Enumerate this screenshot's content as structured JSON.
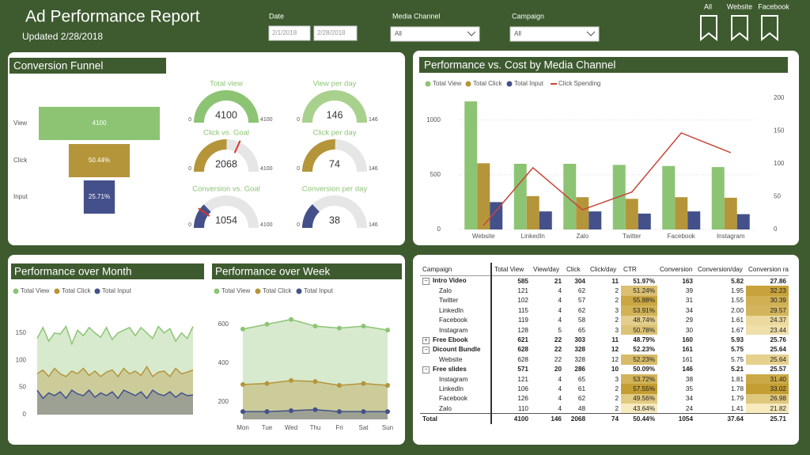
{
  "header": {
    "title": "Ad Performance Report",
    "updated": "Updated 2/28/2018",
    "filters": [
      {
        "label": "Date",
        "values": [
          "2/1/2018",
          "2/28/2018"
        ]
      },
      {
        "label": "Media Channel",
        "values": [
          "All"
        ]
      },
      {
        "label": "Campaign",
        "values": [
          "All"
        ]
      }
    ],
    "bookmarks": [
      "All",
      "Website",
      "Facebook"
    ]
  },
  "chart_data": [
    {
      "type": "funnel",
      "title": "Conversion Funnel",
      "categories": [
        "View",
        "Click",
        "Input"
      ],
      "values": [
        4100,
        2068,
        1054
      ],
      "bar_labels": [
        "4100",
        "50.44%",
        "25.71%"
      ],
      "colors": [
        "#8cc474",
        "#b5953a",
        "#44508a"
      ]
    },
    {
      "type": "gauge",
      "title": "Total view",
      "value": 4100,
      "ylim": [
        0,
        4100
      ],
      "color": "#8cc474"
    },
    {
      "type": "gauge",
      "title": "View per day",
      "value": 146,
      "ylim": [
        0,
        146
      ],
      "color": "#a9d18e"
    },
    {
      "type": "gauge",
      "title": "Click vs. Goal",
      "value": 2068,
      "goal": 2600,
      "ylim": [
        0,
        4100
      ],
      "color": "#b5953a"
    },
    {
      "type": "gauge",
      "title": "Click per day",
      "value": 74,
      "ylim": [
        0,
        146
      ],
      "color": "#b5953a"
    },
    {
      "type": "gauge",
      "title": "Conversion vs. Goal",
      "value": 1054,
      "goal": 800,
      "ylim": [
        0,
        4100
      ],
      "color": "#44508a"
    },
    {
      "type": "gauge",
      "title": "Conversion per day",
      "value": 38,
      "ylim": [
        0,
        146
      ],
      "color": "#44508a"
    },
    {
      "type": "bar_line",
      "title": "Performance vs. Cost by Media Channel",
      "categories": [
        "Website",
        "LinkedIn",
        "Zalo",
        "Twitter",
        "Facebook",
        "Instagram"
      ],
      "series": [
        {
          "name": "Total View",
          "color": "#8cc474",
          "values": [
            1170,
            600,
            600,
            590,
            580,
            570
          ]
        },
        {
          "name": "Total Click",
          "color": "#b5953a",
          "values": [
            605,
            305,
            295,
            280,
            295,
            290
          ]
        },
        {
          "name": "Total Input",
          "color": "#44508a",
          "values": [
            250,
            165,
            165,
            145,
            165,
            140
          ]
        },
        {
          "name": "Click Spending",
          "type": "line",
          "axis": "y2",
          "color": "#c8463a",
          "values": [
            6,
            94,
            30,
            57,
            147,
            117
          ]
        }
      ],
      "ylim": [
        0,
        1200
      ],
      "yticks": [
        0,
        500,
        1000
      ],
      "y2lim": [
        0,
        200
      ],
      "y2ticks": [
        0,
        50,
        100,
        150,
        200
      ],
      "grid": true
    },
    {
      "type": "area",
      "title": "Performance over Month",
      "categories": [
        null,
        null,
        null,
        null,
        null,
        null,
        null,
        null,
        null,
        null,
        null,
        null,
        null,
        null,
        null,
        null,
        null,
        null,
        null,
        null,
        null,
        null,
        null,
        null,
        null,
        null,
        null,
        null
      ],
      "series": [
        {
          "name": "Total View",
          "color": "#8cc474",
          "values": [
            140,
            160,
            135,
            150,
            148,
            162,
            130,
            155,
            145,
            160,
            150,
            142,
            160,
            138,
            150,
            155,
            160,
            145,
            160,
            150,
            140,
            162,
            150,
            158,
            135,
            150,
            140,
            162
          ]
        },
        {
          "name": "Total Click",
          "color": "#b5953a",
          "values": [
            75,
            82,
            70,
            85,
            75,
            70,
            80,
            75,
            85,
            72,
            80,
            70,
            78,
            82,
            70,
            85,
            75,
            80,
            72,
            88,
            70,
            78,
            80,
            70,
            85,
            75,
            78,
            82
          ]
        },
        {
          "name": "Total Input",
          "color": "#44508a",
          "values": [
            45,
            30,
            40,
            35,
            42,
            30,
            45,
            38,
            35,
            45,
            32,
            40,
            35,
            42,
            30,
            45,
            40,
            35,
            42,
            30,
            45,
            38,
            35,
            42,
            32,
            40,
            35,
            36
          ]
        }
      ],
      "ylim": [
        0,
        170
      ],
      "yticks": [
        0,
        50,
        100,
        150
      ]
    },
    {
      "type": "area",
      "title": "Performance over Week",
      "markers": true,
      "categories": [
        "Mon",
        "Tue",
        "Wed",
        "Thu",
        "Fri",
        "Sat",
        "Sun"
      ],
      "series": [
        {
          "name": "Total View",
          "color": "#8cc474",
          "values": [
            575,
            600,
            625,
            590,
            580,
            590,
            570
          ]
        },
        {
          "name": "Total Click",
          "color": "#b5953a",
          "values": [
            290,
            295,
            310,
            305,
            285,
            295,
            285
          ]
        },
        {
          "name": "Total Input",
          "color": "#44508a",
          "values": [
            150,
            150,
            155,
            160,
            150,
            150,
            150
          ]
        }
      ],
      "ylim": [
        110,
        660
      ],
      "yticks": [
        200,
        400,
        600
      ]
    }
  ],
  "table": {
    "columns": [
      "Campaign",
      "Total View",
      "View/day",
      "Click",
      "Click/day",
      "CTR",
      "Conversion",
      "Conversion/day",
      "Conversion ra"
    ],
    "rows": [
      {
        "toggle": "−",
        "cells": [
          "Intro Video",
          "585",
          "21",
          "304",
          "11",
          "51.97%",
          "163",
          "5.82",
          "27.86"
        ]
      },
      {
        "cells": [
          "Zalo",
          "121",
          "4",
          "62",
          "2",
          "51.24%",
          "39",
          "1.95",
          "32.23"
        ]
      },
      {
        "cells": [
          "Twitter",
          "102",
          "4",
          "57",
          "2",
          "55.88%",
          "31",
          "1.55",
          "30.39"
        ]
      },
      {
        "cells": [
          "LinkedIn",
          "115",
          "4",
          "62",
          "3",
          "53.91%",
          "34",
          "2.00",
          "29.57"
        ]
      },
      {
        "cells": [
          "Facebook",
          "119",
          "4",
          "58",
          "2",
          "48.74%",
          "29",
          "1.61",
          "24.37"
        ]
      },
      {
        "cells": [
          "Instagram",
          "128",
          "5",
          "65",
          "3",
          "50.78%",
          "30",
          "1.67",
          "23.44"
        ]
      },
      {
        "toggle": "+",
        "cells": [
          "Free Ebook",
          "621",
          "22",
          "303",
          "11",
          "48.79%",
          "160",
          "5.93",
          "25.76"
        ]
      },
      {
        "toggle": "−",
        "cells": [
          "Dicount Bundle",
          "628",
          "22",
          "328",
          "12",
          "52.23%",
          "161",
          "5.75",
          "25.64"
        ]
      },
      {
        "cells": [
          "Website",
          "628",
          "22",
          "328",
          "12",
          "52.23%",
          "161",
          "5.75",
          "25.64"
        ]
      },
      {
        "toggle": "−",
        "cells": [
          "Free slides",
          "571",
          "20",
          "286",
          "10",
          "50.09%",
          "146",
          "5.21",
          "25.57"
        ]
      },
      {
        "cells": [
          "Instagram",
          "121",
          "4",
          "65",
          "3",
          "53.72%",
          "38",
          "1.81",
          "31.40"
        ]
      },
      {
        "cells": [
          "LinkedIn",
          "106",
          "4",
          "61",
          "2",
          "57.55%",
          "35",
          "1.78",
          "33.02"
        ]
      },
      {
        "cells": [
          "Facebook",
          "126",
          "4",
          "62",
          "2",
          "49.56%",
          "34",
          "1.79",
          "26.98"
        ]
      },
      {
        "cells": [
          "Zalo",
          "110",
          "4",
          "48",
          "2",
          "43.64%",
          "24",
          "1.41",
          "21.82"
        ]
      }
    ],
    "total": [
      "Total",
      "4100",
      "146",
      "2068",
      "74",
      "50.44%",
      "1054",
      "37.64",
      "25.71"
    ]
  }
}
